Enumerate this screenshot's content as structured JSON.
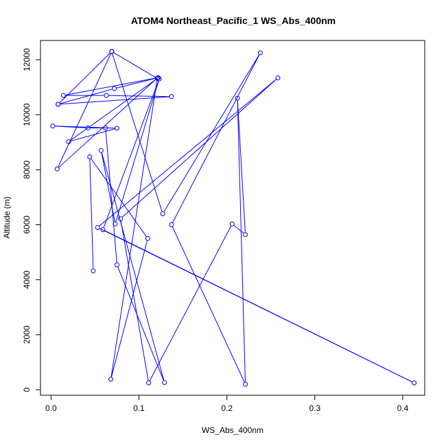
{
  "chart_data": {
    "type": "line",
    "title": "ATOM4 Northeast_Pacific_1 WS_Abs_400nm",
    "xlabel": "WS_Abs_400nm",
    "ylabel": "Altitude (m)",
    "xlim": [
      -0.012,
      0.425
    ],
    "ylim": [
      -200,
      12700
    ],
    "x_ticks": [
      0.0,
      0.1,
      0.2,
      0.3,
      0.4
    ],
    "x_tick_labels": [
      "0.0",
      "0.1",
      "0.2",
      "0.3",
      "0.4"
    ],
    "y_ticks": [
      0,
      2000,
      4000,
      6000,
      8000,
      10000,
      12000
    ],
    "y_tick_labels": [
      "0",
      "2000",
      "4000",
      "6000",
      "8000",
      "10000",
      "12000"
    ],
    "series_color": "#0000ff",
    "marker": "open-circle",
    "grid": false,
    "series": [
      {
        "x": [
          0.048,
          0.044,
          0.11,
          0.068,
          0.121,
          0.007,
          0.069,
          0.127,
          0.238,
          0.137,
          0.221,
          0.212,
          0.221,
          0.206,
          0.111,
          0.079,
          0.258,
          0.053,
          0.413,
          0.059,
          0.123,
          0.073,
          0.057,
          0.129,
          0.075,
          0.062,
          0.042,
          0.002,
          0.075,
          0.02,
          0.121,
          0.069,
          0.008,
          0.137,
          0.063,
          0.014,
          0.122,
          0.072,
          0.008
        ],
        "y": [
          4320,
          8470,
          5500,
          380,
          11340,
          8030,
          12290,
          6400,
          12250,
          6000,
          200,
          10600,
          5640,
          6030,
          250,
          6220,
          11340,
          5900,
          250,
          5820,
          11300,
          6030,
          8700,
          260,
          4540,
          9520,
          9520,
          9590,
          9510,
          9020,
          11320,
          12300,
          10380,
          10660,
          10700,
          10700,
          11350,
          10950,
          10380
        ]
      }
    ]
  }
}
